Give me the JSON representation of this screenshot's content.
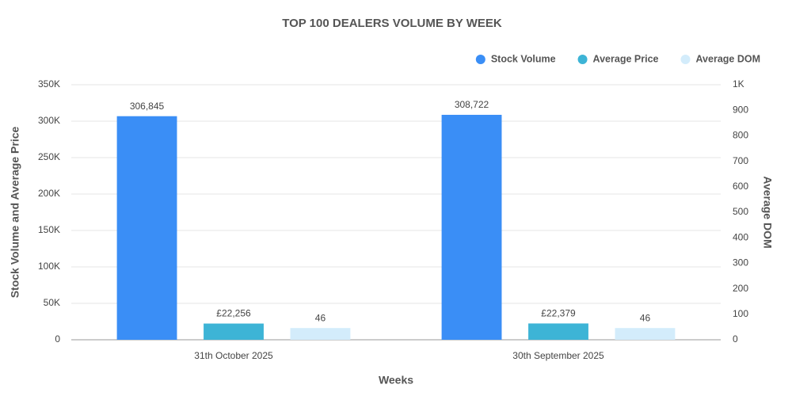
{
  "chart_data": {
    "type": "bar",
    "title": "TOP 100 DEALERS VOLUME BY WEEK",
    "x_label": "Weeks",
    "y_label": "Stock Volume and Average Price",
    "y2_label": "Average DOM",
    "categories": [
      "31th October 2025",
      "30th September 2025"
    ],
    "series": [
      {
        "name": "Stock Volume",
        "color": "#3a8ef6",
        "values": [
          306845,
          308722
        ],
        "value_labels": [
          "306,845",
          "308,722"
        ]
      },
      {
        "name": "Average Price",
        "color": "#3db4d6",
        "values": [
          22256,
          22379
        ],
        "value_labels": [
          "£22,256",
          "£22,379"
        ]
      },
      {
        "name": "Average DOM",
        "color": "#d3ecfb",
        "axis": "y2",
        "values": [
          46,
          46
        ]
      }
    ],
    "ylim": [
      0,
      350000
    ],
    "yticks": [
      0,
      {
        "value": 50000,
        "label": "50K"
      },
      {
        "value": 100000,
        "label": "100K"
      },
      {
        "value": 150000,
        "label": "150K"
      },
      {
        "value": 200000,
        "label": "200K"
      },
      {
        "value": 250000,
        "label": "250K"
      },
      {
        "value": 300000,
        "label": "300K"
      },
      {
        "value": 350000,
        "label": "350K"
      }
    ],
    "y2lim": [
      0,
      1000
    ],
    "y2ticks": [
      0,
      100,
      200,
      300,
      400,
      500,
      600,
      700,
      800,
      900,
      {
        "value": 1000,
        "label": "1K"
      }
    ],
    "grid": true,
    "legend": "top-right"
  }
}
